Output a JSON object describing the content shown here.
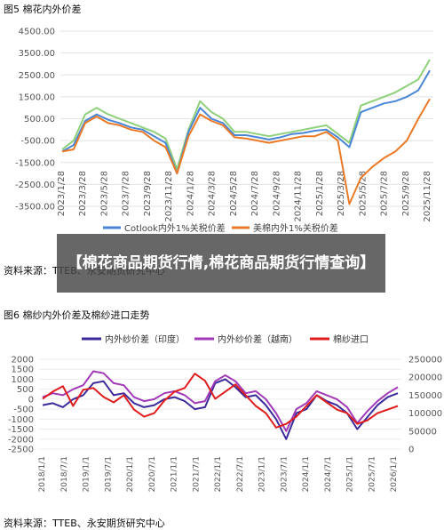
{
  "chart_data": [
    {
      "fig_label": "图5 棉花内外价差",
      "type": "line",
      "ylim": [
        -3500,
        4500
      ],
      "yticks": [
        "4500.00",
        "3500.00",
        "2500.00",
        "1500.00",
        "500.00",
        "-500.00",
        "-1500.00",
        "-2500.00",
        "-3500.00"
      ],
      "x_ticks": [
        "2023/1/28",
        "2023/3/28",
        "2023/5/28",
        "2023/7/28",
        "2023/9/28",
        "2023/11/28",
        "2024/1/28",
        "2024/3/28",
        "2024/5/28",
        "2024/7/28",
        "2024/9/28",
        "2024/11/28",
        "2025/1/28",
        "2025/3/28",
        "2025/5/28",
        "2025/7/28",
        "2025/9/28",
        "2025/11/28"
      ],
      "series": [
        {
          "name": "Cotlook内外1%关税价差",
          "color": "#4b86d6",
          "values": [
            -1000,
            -700,
            400,
            700,
            450,
            300,
            100,
            0,
            -300,
            -600,
            -2000,
            -100,
            1000,
            500,
            300,
            -250,
            -250,
            -350,
            -450,
            -350,
            -200,
            -150,
            -50,
            0,
            -350,
            -800,
            800,
            1000,
            1200,
            1300,
            1500,
            1800,
            2700
          ]
        },
        {
          "name": "美棉内外1%关税价差",
          "color": "#ea7a26",
          "values": [
            -1000,
            -900,
            300,
            600,
            300,
            200,
            0,
            -100,
            -500,
            -800,
            -2000,
            -300,
            700,
            400,
            200,
            -350,
            -400,
            -500,
            -600,
            -500,
            -400,
            -300,
            -300,
            -100,
            -500,
            -3400,
            -2200,
            -1700,
            -1300,
            -1000,
            -500,
            500,
            1400
          ]
        },
        {
          "name": "",
          "color": "#8fd07a",
          "values": [
            -900,
            -500,
            700,
            1000,
            700,
            500,
            300,
            100,
            -100,
            -400,
            -1800,
            0,
            1300,
            800,
            500,
            -100,
            -100,
            -200,
            -300,
            -200,
            -100,
            0,
            100,
            200,
            -200,
            -600,
            1100,
            1300,
            1500,
            1700,
            2000,
            2300,
            3200
          ]
        }
      ]
    },
    {
      "fig_label": "图6 棉纱内外价差及棉纱进口走势",
      "type": "line",
      "ylim_left": [
        -2500,
        2000
      ],
      "yticks_left": [
        "2000",
        "1500",
        "1000",
        "500",
        "0",
        "-500",
        "-1000",
        "-1500",
        "-2000",
        "-2500"
      ],
      "ylim_right": [
        0,
        250000
      ],
      "yticks_right": [
        "250000",
        "200000",
        "150000",
        "100000",
        "50000",
        "0"
      ],
      "x_ticks": [
        "2018/1/1",
        "2018/7/1",
        "2019/1/1",
        "2019/7/1",
        "2020/1/1",
        "2020/7/1",
        "2021/1/1",
        "2021/7/1",
        "2022/1/1",
        "2022/7/1",
        "2023/1/1",
        "2023/7/1",
        "2024/1/1",
        "2024/7/1",
        "2025/1/1",
        "2025/7/1",
        "2026/1/1"
      ],
      "series": [
        {
          "name": "内外纱价差（印度）",
          "color": "#3c2a9a",
          "axis": "left",
          "values": [
            -300,
            -200,
            -400,
            0,
            200,
            800,
            900,
            200,
            300,
            -200,
            -400,
            -300,
            0,
            100,
            -100,
            -500,
            -400,
            800,
            1000,
            600,
            100,
            200,
            -300,
            -1000,
            -2000,
            -700,
            -500,
            200,
            -100,
            -300,
            -700,
            -1500,
            -900,
            -300,
            100,
            300
          ]
        },
        {
          "name": "内外纱价差（越南）",
          "color": "#a23ab8",
          "axis": "left",
          "values": [
            100,
            300,
            200,
            500,
            700,
            1400,
            1300,
            800,
            700,
            100,
            -100,
            0,
            300,
            400,
            200,
            -200,
            -100,
            900,
            1200,
            900,
            300,
            400,
            0,
            -700,
            -1600,
            -500,
            -200,
            400,
            200,
            0,
            -400,
            -1200,
            -600,
            -100,
            300,
            600
          ]
        },
        {
          "name": "棉纱进口",
          "color": "#e01c1c",
          "axis": "right",
          "values": [
            140000,
            160000,
            175000,
            120000,
            165000,
            170000,
            145000,
            130000,
            150000,
            110000,
            90000,
            100000,
            135000,
            160000,
            170000,
            210000,
            190000,
            140000,
            160000,
            180000,
            150000,
            120000,
            100000,
            60000,
            70000,
            90000,
            120000,
            150000,
            130000,
            110000,
            100000,
            70000,
            80000,
            100000,
            110000,
            120000
          ]
        }
      ]
    }
  ],
  "fig5": {
    "title": "图5 棉花内外价差",
    "source": "资料来源：TTEB、永安期货研究中心"
  },
  "fig6": {
    "title": "图6 棉纱内外价差及棉纱进口走势",
    "source": "资料来源：TTEB、永安期货研究中心"
  },
  "overlay_text": "【棉花商品期货行情,棉花商品期货行情查询】"
}
